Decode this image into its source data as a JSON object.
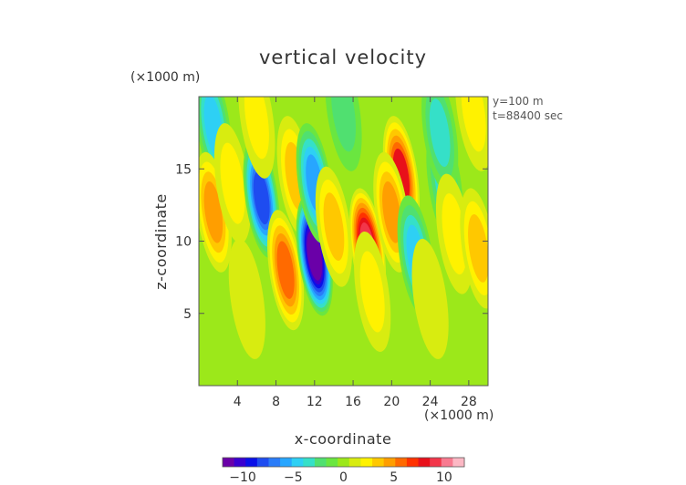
{
  "chart_data": {
    "type": "heatmap",
    "title": "vertical velocity",
    "xlabel": "x-coordinate",
    "ylabel": "z-coordinate",
    "x_unit": "(×1000 m)",
    "y_unit": "(×1000 m)",
    "xlim": [
      0,
      30
    ],
    "ylim": [
      0,
      20
    ],
    "x_ticks": [
      {
        "value": 4,
        "label": "4"
      },
      {
        "value": 8,
        "label": "8"
      },
      {
        "value": 12,
        "label": "12"
      },
      {
        "value": 16,
        "label": "16"
      },
      {
        "value": 20,
        "label": "20"
      },
      {
        "value": 24,
        "label": "24"
      },
      {
        "value": 28,
        "label": "28"
      }
    ],
    "y_ticks": [
      {
        "value": 5,
        "label": "5"
      },
      {
        "value": 10,
        "label": "10"
      },
      {
        "value": 15,
        "label": "15"
      }
    ],
    "annotations": [
      "y=100 m",
      "t=88400 sec"
    ],
    "colorbar": {
      "range": [
        -12,
        12
      ],
      "ticks": [
        {
          "value": -10,
          "label": "−10"
        },
        {
          "value": -5,
          "label": "−5"
        },
        {
          "value": 0,
          "label": "0"
        },
        {
          "value": 5,
          "label": "5"
        },
        {
          "value": 10,
          "label": "10"
        }
      ],
      "colors": [
        "#6a00a8",
        "#3a00d0",
        "#0a10e8",
        "#1e4cf0",
        "#2a7cf8",
        "#27a6ff",
        "#2ed0f4",
        "#35e0c8",
        "#50e070",
        "#6ae640",
        "#9ce81a",
        "#d8ec10",
        "#fff200",
        "#ffc800",
        "#ff9e00",
        "#ff6a00",
        "#ff3200",
        "#e8101a",
        "#f2364a",
        "#f87a90",
        "#fcb8c4"
      ]
    },
    "features": [
      {
        "x": 1.5,
        "z": 18.0,
        "w": -4.5
      },
      {
        "x": 1.5,
        "z": 12.0,
        "w": 4.5
      },
      {
        "x": 3.5,
        "z": 14.0,
        "w": 2.5
      },
      {
        "x": 6.5,
        "z": 13.0,
        "w": -8.5
      },
      {
        "x": 6.0,
        "z": 18.5,
        "w": 2.0
      },
      {
        "x": 9.0,
        "z": 8.0,
        "w": 5.5
      },
      {
        "x": 10.0,
        "z": 14.5,
        "w": 3.0
      },
      {
        "x": 12.0,
        "z": 9.0,
        "w": -12.0
      },
      {
        "x": 12.0,
        "z": 14.0,
        "w": -6.0
      },
      {
        "x": 14.0,
        "z": 11.0,
        "w": 3.0
      },
      {
        "x": 17.5,
        "z": 9.5,
        "w": 9.5
      },
      {
        "x": 21.0,
        "z": 14.5,
        "w": 7.5
      },
      {
        "x": 20.0,
        "z": 12.0,
        "w": 5.0
      },
      {
        "x": 22.5,
        "z": 9.0,
        "w": -4.5
      },
      {
        "x": 25.5,
        "z": 14.0,
        "w": -3.5
      },
      {
        "x": 25.0,
        "z": 17.5,
        "w": -3.0
      },
      {
        "x": 26.5,
        "z": 10.5,
        "w": 2.5
      },
      {
        "x": 29.0,
        "z": 9.5,
        "w": 3.5
      },
      {
        "x": 28.5,
        "z": 19.0,
        "w": 2.0
      },
      {
        "x": 15.0,
        "z": 19.0,
        "w": -2.0
      },
      {
        "x": 18.0,
        "z": 6.5,
        "w": 2.0
      },
      {
        "x": 5.0,
        "z": 6.0,
        "w": 1.5
      },
      {
        "x": 24.0,
        "z": 6.0,
        "w": 1.5
      }
    ]
  }
}
